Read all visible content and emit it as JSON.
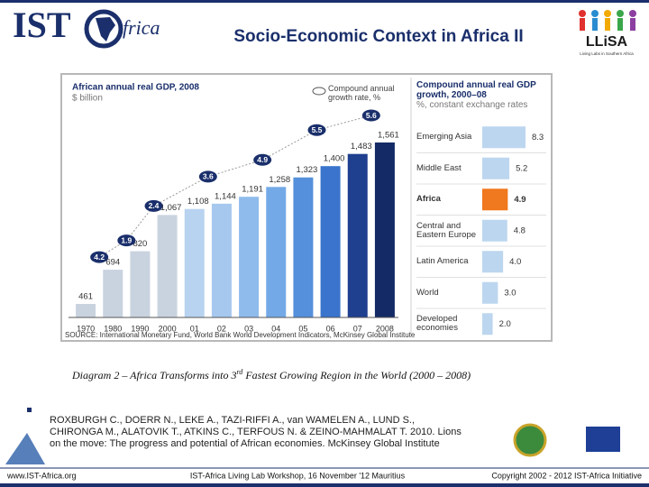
{
  "header": {
    "logo_left": [
      "IST",
      "frica"
    ],
    "title": "Socio-Economic Context in Africa II",
    "logo_right": [
      "LLiSA",
      "Living Labs in Southern Africa"
    ]
  },
  "chart_data": [
    {
      "type": "bar",
      "title": "African annual real GDP, 2008",
      "subtitle": "$ billion",
      "legend_note": "Compound annual growth rate, %",
      "categories": [
        "1970",
        "1980",
        "1990",
        "2000",
        "01",
        "02",
        "03",
        "04",
        "05",
        "06",
        "07",
        "2008"
      ],
      "values": [
        461,
        694,
        820,
        1067,
        1108,
        1144,
        1191,
        1258,
        1323,
        1400,
        1483,
        1561
      ],
      "value_labels": [
        "461",
        "694",
        "820",
        "1,067",
        "1,108",
        "1,144",
        "1,191",
        "1,258",
        "1,323",
        "1,400",
        "1,483",
        "1,561"
      ],
      "colors": [
        "#c9d3df",
        "#c9d3df",
        "#c9d3df",
        "#c9d3df",
        "#b8d3f0",
        "#a6c8ee",
        "#8fbbec",
        "#73a9e6",
        "#5590dc",
        "#3a74cc",
        "#1f3f8f",
        "#142a66"
      ],
      "annotations": [
        4.2,
        1.9,
        2.4,
        3.6,
        4.9,
        5.5,
        5.6
      ],
      "annotation_color": "#1a2f6b"
    },
    {
      "type": "hbar",
      "title": "Compound annual real GDP growth, 2000–08",
      "subtitle": "%, constant exchange rates",
      "categories": [
        "Emerging Asia",
        "Middle East",
        "Africa",
        "Central and Eastern Europe",
        "Latin America",
        "World",
        "Developed economies"
      ],
      "values": [
        8.3,
        5.2,
        4.9,
        4.8,
        4.0,
        3.0,
        2.0
      ],
      "value_labels": [
        "8.3",
        "5.2",
        "4.9",
        "4.8",
        "4.0",
        "3.0",
        "2.0"
      ],
      "colors": [
        "#bcd6ef",
        "#bcd6ef",
        "#f0781e",
        "#bcd6ef",
        "#bcd6ef",
        "#bcd6ef",
        "#bcd6ef"
      ]
    }
  ],
  "source": "SOURCE: International Monetary Fund, World Bank World Development Indicators, McKinsey Global Institute",
  "caption": [
    "Diagram 2 – Africa Transforms into 3",
    "rd",
    " Fastest Growing Region in the World (2000 – 2008)"
  ],
  "reference": [
    "ROXBURGH C., DOERR N., LEKE A., TAZI-RIFFI A., van WAMELEN A., LUND S.,",
    "CHIRONGA M., ALATOVIK T., ATKINS C., TERFOUS N. & ZEINO-MAHMALAT T. 2010. Lions",
    "on the move: The progress and potential of African economies. McKinsey Global Institute"
  ],
  "footer": [
    "www.IST-Africa.org",
    "IST-Africa Living Lab Workshop, 16 November '12 Mauritius",
    "Copyright 2002 - 2012 IST-Africa Initiative"
  ]
}
